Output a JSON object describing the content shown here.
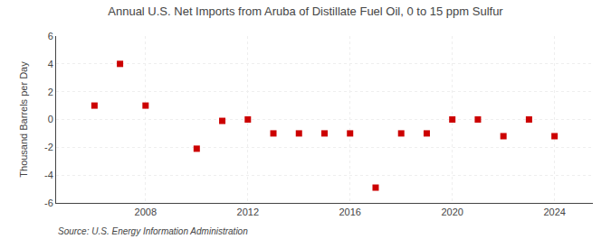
{
  "chart_data": {
    "type": "scatter",
    "title": "Annual U.S. Net Imports from Aruba of Distillate Fuel Oil, 0 to 15 ppm Sulfur",
    "ylabel": "Thousand Barrels per Day",
    "annotations": [
      "Source: U.S. Energy Information Administration"
    ],
    "x": [
      2006,
      2007,
      2008,
      2010,
      2011,
      2012,
      2013,
      2014,
      2015,
      2016,
      2017,
      2018,
      2019,
      2020,
      2021,
      2022,
      2023,
      2024
    ],
    "values": [
      1.0,
      4.0,
      1.0,
      -2.1,
      -0.1,
      0.0,
      -1.0,
      -1.0,
      -1.0,
      -1.0,
      -4.9,
      -1.0,
      -1.0,
      0.0,
      0.0,
      -1.2,
      0.0,
      -1.2
    ],
    "color": "#cc0000",
    "marker": "square",
    "xlim": [
      2004.5,
      2025.5
    ],
    "xticks": [
      2008,
      2012,
      2016,
      2020,
      2024
    ],
    "ylim": [
      -6,
      6
    ],
    "yticks": [
      -6,
      -4,
      -2,
      0,
      2,
      4,
      6
    ],
    "grid": true
  }
}
